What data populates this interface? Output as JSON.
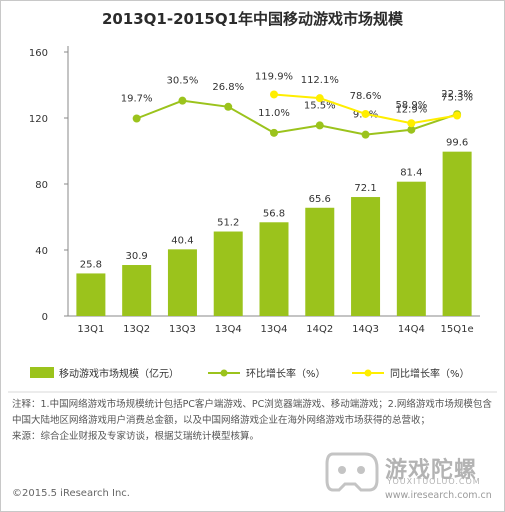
{
  "chart_data": {
    "type": "bar+line",
    "title": "2013Q1-2015Q1年中国移动游戏市场规模",
    "categories": [
      "13Q1",
      "13Q2",
      "13Q3",
      "13Q4",
      "13Q4",
      "14Q2",
      "14Q3",
      "14Q4",
      "15Q1e"
    ],
    "y_ticks": [
      "0",
      "40",
      "80",
      "120",
      "160"
    ],
    "ylim": [
      0,
      160
    ],
    "grid": false,
    "legend_position": "bottom",
    "series": [
      {
        "name": "移动游戏市场规模（亿元）",
        "kind": "bar",
        "color": "#9bc31c",
        "values": [
          25.8,
          30.9,
          40.4,
          51.2,
          56.8,
          65.6,
          72.1,
          81.4,
          99.6
        ],
        "labels": [
          "25.8",
          "30.9",
          "40.4",
          "51.2",
          "56.8",
          "65.6",
          "72.1",
          "81.4",
          "99.6"
        ]
      },
      {
        "name": "环比增长率（%）",
        "kind": "line",
        "color": "#9bc31c",
        "values": [
          null,
          19.7,
          30.5,
          26.8,
          11.0,
          15.5,
          9.9,
          12.9,
          22.3
        ],
        "labels": [
          null,
          "19.7%",
          "30.5%",
          "26.8%",
          "11.0%",
          "15.5%",
          "9.9%",
          "12.9%",
          "22.3%"
        ]
      },
      {
        "name": "同比增长率（%）",
        "kind": "line",
        "color": "#ffee00",
        "values": [
          null,
          null,
          null,
          null,
          119.9,
          112.1,
          78.6,
          58.9,
          75.3
        ],
        "labels": [
          null,
          null,
          null,
          null,
          "119.9%",
          "112.1%",
          "78.6%",
          "58.9%",
          "75.3%"
        ]
      }
    ]
  },
  "notes": {
    "line1": "注释：1.中国网络游戏市场规模统计包括PC客户端游戏、PC浏览器端游戏、移动端游戏；2.网络游戏市场规模包含中国大陆地区网络游戏用户消费总金额，以及中国网络游戏企业在海外网络游戏市场获得的总营收；",
    "line2": "来源：综合企业财报及专家访谈，根据艾瑞统计模型核算。"
  },
  "footer": {
    "copyright": "©2015.5 iResearch Inc.",
    "website": "www.iresearch.com.cn"
  },
  "logo": {
    "text_cn": "游戏陀螺",
    "text_en": "YOUXITUOLUO.COM"
  }
}
